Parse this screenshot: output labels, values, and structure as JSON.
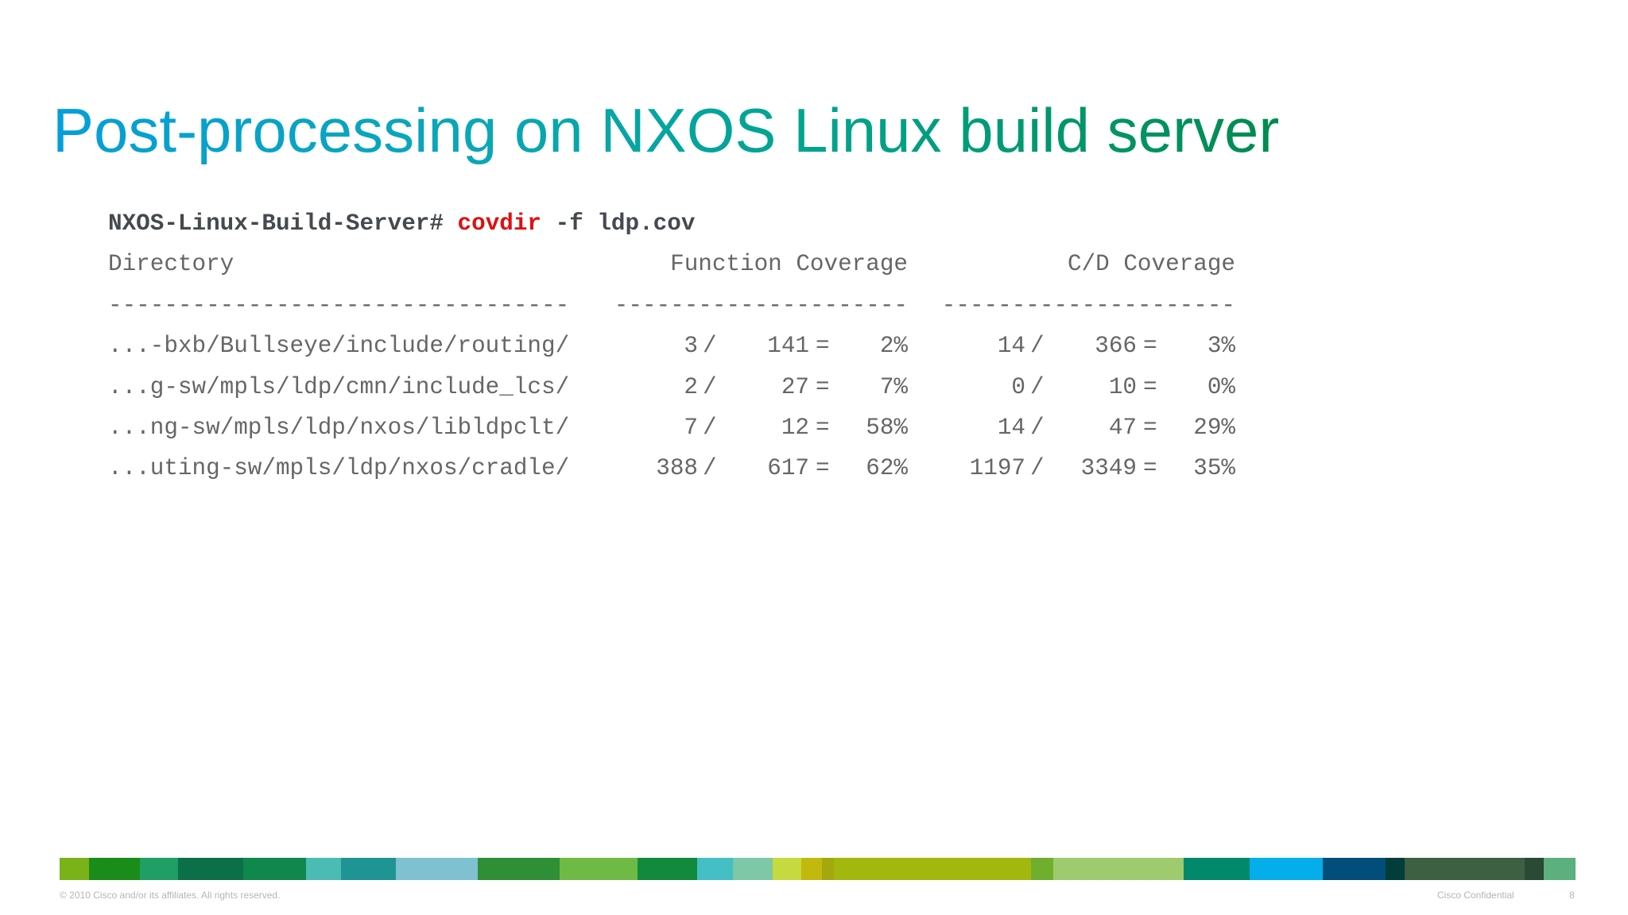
{
  "slide": {
    "title": "Post-processing on NXOS Linux build server"
  },
  "terminal": {
    "prompt": "NXOS-Linux-Build-Server# ",
    "command": "covdir",
    "args": " -f ldp.cov",
    "headers": {
      "directory": "Directory",
      "function_coverage": "Function Coverage",
      "cd_coverage": "C/D Coverage"
    },
    "dashes": {
      "directory": "---------------------------------",
      "function_coverage": "---------------------",
      "cd_coverage": "---------------------"
    },
    "rows": [
      {
        "dir": "...-bxb/Bullseye/include/routing/",
        "f_hit": "3",
        "f_total": "141",
        "f_pct": "2%",
        "cd_hit": "14",
        "cd_total": "366",
        "cd_pct": "3%"
      },
      {
        "dir": "...g-sw/mpls/ldp/cmn/include_lcs/",
        "f_hit": "2",
        "f_total": "27",
        "f_pct": "7%",
        "cd_hit": "0",
        "cd_total": "10",
        "cd_pct": "0%"
      },
      {
        "dir": "...ng-sw/mpls/ldp/nxos/libldpclt/",
        "f_hit": "7",
        "f_total": "12",
        "f_pct": "58%",
        "cd_hit": "14",
        "cd_total": "47",
        "cd_pct": "29%"
      },
      {
        "dir": "...uting-sw/mpls/ldp/nxos/cradle/",
        "f_hit": "388",
        "f_total": "617",
        "f_pct": "62%",
        "cd_hit": "1197",
        "cd_total": "3349",
        "cd_pct": "35%"
      }
    ],
    "sep_slash": "/",
    "sep_equals": "="
  },
  "colors": {
    "command": "#e00f0f",
    "band": [
      {
        "color": "#7ab317",
        "weight": 37
      },
      {
        "color": "#1a8c1a",
        "weight": 63
      },
      {
        "color": "#1f9e66",
        "weight": 48
      },
      {
        "color": "#0b7047",
        "weight": 82
      },
      {
        "color": "#10874d",
        "weight": 78
      },
      {
        "color": "#4bbcb3",
        "weight": 44
      },
      {
        "color": "#1f9494",
        "weight": 69
      },
      {
        "color": "#7fc1d0",
        "weight": 102
      },
      {
        "color": "#2e8f36",
        "weight": 103
      },
      {
        "color": "#6fba45",
        "weight": 97
      },
      {
        "color": "#118a3e",
        "weight": 75
      },
      {
        "color": "#44bfc5",
        "weight": 45
      },
      {
        "color": "#7ec8a8",
        "weight": 49
      },
      {
        "color": "#c6d93e",
        "weight": 36
      },
      {
        "color": "#c2b90f",
        "weight": 26
      },
      {
        "color": "#a3a80e",
        "weight": 15
      },
      {
        "color": "#a2b80f",
        "weight": 247
      },
      {
        "color": "#6faf2d",
        "weight": 27
      },
      {
        "color": "#9ecb6e",
        "weight": 164
      },
      {
        "color": "#00896b",
        "weight": 82
      },
      {
        "color": "#03aeea",
        "weight": 92
      },
      {
        "color": "#004e79",
        "weight": 78
      },
      {
        "color": "#003d3b",
        "weight": 24
      },
      {
        "color": "#3d6042",
        "weight": 150
      },
      {
        "color": "#2a4a35",
        "weight": 24
      },
      {
        "color": "#5cb07e",
        "weight": 40
      }
    ]
  },
  "footer": {
    "copyright": "© 2010 Cisco and/or its affiliates. All rights reserved.",
    "confidential": "Cisco Confidential",
    "page_number": "8"
  }
}
